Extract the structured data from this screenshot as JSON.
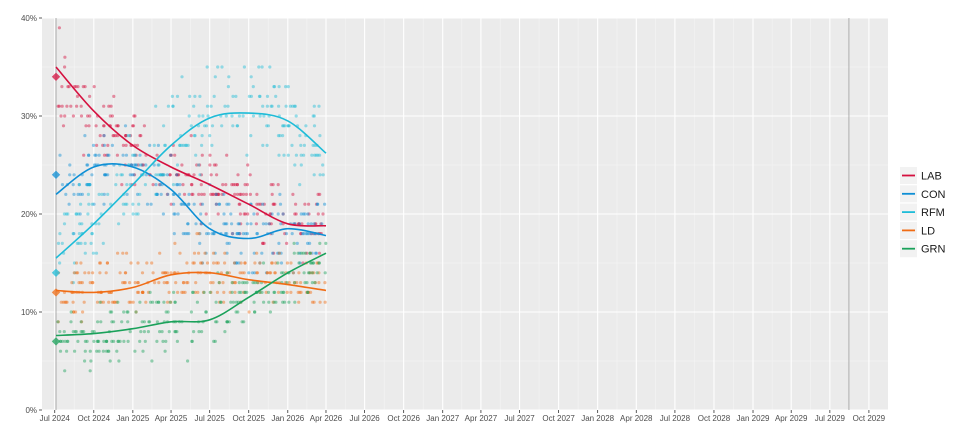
{
  "chart_data": {
    "type": "scatter",
    "title": "",
    "xlabel": "",
    "ylabel": "",
    "ylim": [
      0,
      40
    ],
    "xlim": [
      "2024-06-01",
      "2029-11-15"
    ],
    "y_ticks": [
      {
        "value": 0,
        "label": "0%"
      },
      {
        "value": 10,
        "label": "10%"
      },
      {
        "value": 20,
        "label": "20%"
      },
      {
        "value": 30,
        "label": "30%"
      },
      {
        "value": 40,
        "label": "40%"
      }
    ],
    "x_ticks": [
      {
        "date": "2024-07-01",
        "label": "Jul 2024"
      },
      {
        "date": "2024-10-01",
        "label": "Oct 2024"
      },
      {
        "date": "2025-01-01",
        "label": "Jan 2025"
      },
      {
        "date": "2025-04-01",
        "label": "Apr 2025"
      },
      {
        "date": "2025-07-01",
        "label": "Jul 2025"
      },
      {
        "date": "2025-10-01",
        "label": "Oct 2025"
      },
      {
        "date": "2026-01-01",
        "label": "Jan 2026"
      },
      {
        "date": "2026-04-01",
        "label": "Apr 2026"
      },
      {
        "date": "2026-07-01",
        "label": "Jul 2026"
      },
      {
        "date": "2026-10-01",
        "label": "Oct 2026"
      },
      {
        "date": "2027-01-01",
        "label": "Jan 2027"
      },
      {
        "date": "2027-04-01",
        "label": "Apr 2027"
      },
      {
        "date": "2027-07-01",
        "label": "Jul 2027"
      },
      {
        "date": "2027-10-01",
        "label": "Oct 2027"
      },
      {
        "date": "2028-01-01",
        "label": "Jan 2028"
      },
      {
        "date": "2028-04-01",
        "label": "Apr 2028"
      },
      {
        "date": "2028-07-01",
        "label": "Jul 2028"
      },
      {
        "date": "2028-10-01",
        "label": "Oct 2028"
      },
      {
        "date": "2029-01-01",
        "label": "Jan 2029"
      },
      {
        "date": "2029-04-01",
        "label": "Apr 2029"
      },
      {
        "date": "2029-07-01",
        "label": "Jul 2029"
      },
      {
        "date": "2029-10-01",
        "label": "Oct 2029"
      }
    ],
    "vertical_lines": [
      "2024-07-04",
      "2029-08-15"
    ],
    "grid": true,
    "legend_position": "right",
    "poll_date_range": [
      "2024-07-08",
      "2026-04-01"
    ],
    "series": [
      {
        "name": "LAB",
        "color": "#d5103f",
        "election_result": {
          "date": "2024-07-04",
          "value": 34
        },
        "trend": [
          [
            "2024-07-04",
            35
          ],
          [
            "2024-10-01",
            30.5
          ],
          [
            "2025-01-01",
            27
          ],
          [
            "2025-04-01",
            24.8
          ],
          [
            "2025-07-01",
            23
          ],
          [
            "2025-10-01",
            21
          ],
          [
            "2026-01-01",
            19
          ],
          [
            "2026-04-01",
            18.8
          ]
        ],
        "poll_level": [
          [
            "2024-07-08",
            33
          ],
          [
            "2024-10-01",
            29.5
          ],
          [
            "2025-01-01",
            26.5
          ],
          [
            "2025-04-01",
            24.5
          ],
          [
            "2025-07-01",
            23
          ],
          [
            "2025-10-01",
            21
          ],
          [
            "2026-01-01",
            19.5
          ],
          [
            "2026-04-01",
            18.5
          ]
        ],
        "spread": 1.8,
        "outliers": [
          [
            "2024-07-12",
            39
          ],
          [
            "2024-07-25",
            36
          ],
          [
            "2024-08-20",
            33
          ]
        ]
      },
      {
        "name": "CON",
        "color": "#0e8fd5",
        "election_result": {
          "date": "2024-07-04",
          "value": 24
        },
        "trend": [
          [
            "2024-07-04",
            22
          ],
          [
            "2024-10-01",
            24.8
          ],
          [
            "2025-01-01",
            24.8
          ],
          [
            "2025-04-01",
            22.5
          ],
          [
            "2025-07-01",
            18.5
          ],
          [
            "2025-10-01",
            17.5
          ],
          [
            "2026-01-01",
            18.5
          ],
          [
            "2026-04-01",
            17.8
          ]
        ],
        "poll_level": [
          [
            "2024-07-08",
            22.5
          ],
          [
            "2024-10-01",
            24.5
          ],
          [
            "2025-01-01",
            24.5
          ],
          [
            "2025-04-01",
            22.5
          ],
          [
            "2025-07-01",
            19
          ],
          [
            "2025-10-01",
            18
          ],
          [
            "2026-01-01",
            18
          ],
          [
            "2026-04-01",
            18
          ]
        ],
        "spread": 1.8,
        "outliers": [
          [
            "2024-08-15",
            18
          ],
          [
            "2024-09-10",
            28
          ]
        ]
      },
      {
        "name": "RFM",
        "color": "#1ebcd8",
        "election_result": {
          "date": "2024-07-04",
          "value": 14
        },
        "trend": [
          [
            "2024-07-04",
            15.5
          ],
          [
            "2024-10-01",
            19
          ],
          [
            "2025-01-01",
            23
          ],
          [
            "2025-04-01",
            27
          ],
          [
            "2025-07-01",
            29.8
          ],
          [
            "2025-10-01",
            30.3
          ],
          [
            "2026-01-01",
            29.5
          ],
          [
            "2026-04-01",
            26.2
          ]
        ],
        "poll_level": [
          [
            "2024-07-08",
            15.5
          ],
          [
            "2024-10-01",
            19
          ],
          [
            "2025-01-01",
            23
          ],
          [
            "2025-04-01",
            27
          ],
          [
            "2025-07-01",
            30
          ],
          [
            "2025-10-01",
            30.5
          ],
          [
            "2026-01-01",
            29.5
          ],
          [
            "2026-04-01",
            26.5
          ]
        ],
        "spread": 2.4,
        "outliers": [
          [
            "2025-07-20",
            35
          ],
          [
            "2025-08-15",
            34
          ]
        ]
      },
      {
        "name": "LD",
        "color": "#f06c14",
        "election_result": {
          "date": "2024-07-04",
          "value": 12
        },
        "trend": [
          [
            "2024-07-04",
            12.2
          ],
          [
            "2024-10-01",
            12
          ],
          [
            "2025-01-01",
            12.5
          ],
          [
            "2025-04-01",
            13.8
          ],
          [
            "2025-07-01",
            14
          ],
          [
            "2025-10-01",
            13.3
          ],
          [
            "2026-01-01",
            12.8
          ],
          [
            "2026-04-01",
            12.2
          ]
        ],
        "poll_level": [
          [
            "2024-07-08",
            12
          ],
          [
            "2024-10-01",
            12.5
          ],
          [
            "2025-01-01",
            12.5
          ],
          [
            "2025-04-01",
            13.5
          ],
          [
            "2025-07-01",
            14
          ],
          [
            "2025-10-01",
            13.5
          ],
          [
            "2026-01-01",
            13
          ],
          [
            "2026-04-01",
            12.5
          ]
        ],
        "spread": 1.6,
        "outliers": [
          [
            "2025-04-10",
            17
          ]
        ]
      },
      {
        "name": "GRN",
        "color": "#1aa15a",
        "election_result": {
          "date": "2024-07-04",
          "value": 7
        },
        "trend": [
          [
            "2024-07-04",
            7.6
          ],
          [
            "2024-10-01",
            7.8
          ],
          [
            "2025-01-01",
            8.3
          ],
          [
            "2025-04-01",
            9
          ],
          [
            "2025-07-01",
            9.2
          ],
          [
            "2025-10-01",
            11.5
          ],
          [
            "2026-01-01",
            14
          ],
          [
            "2026-04-01",
            16
          ]
        ],
        "poll_level": [
          [
            "2024-07-08",
            7.5
          ],
          [
            "2024-10-01",
            7.8
          ],
          [
            "2025-01-01",
            8.2
          ],
          [
            "2025-04-01",
            9
          ],
          [
            "2025-07-01",
            9.5
          ],
          [
            "2025-10-01",
            11.5
          ],
          [
            "2026-01-01",
            14
          ],
          [
            "2026-04-01",
            15.5
          ]
        ],
        "spread": 1.6,
        "outliers": [
          [
            "2025-02-15",
            5
          ],
          [
            "2025-05-10",
            5
          ]
        ]
      }
    ]
  }
}
